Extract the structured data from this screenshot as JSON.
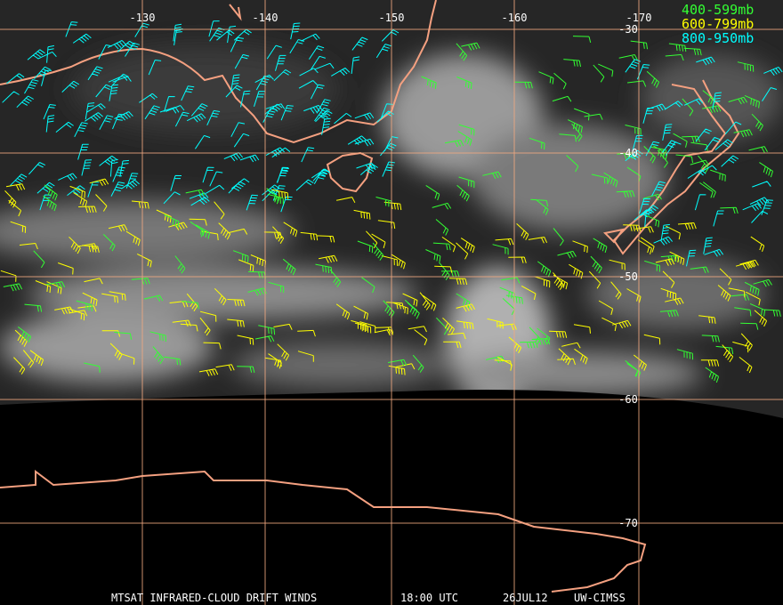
{
  "map": {
    "longitude_labels": [
      "-130",
      "-140",
      "-150",
      "-160",
      "-170"
    ],
    "latitude_labels": [
      "-30",
      "-40",
      "-50",
      "-60",
      "-70"
    ],
    "legend": [
      {
        "label": "400-599mb",
        "color": "#33ff33"
      },
      {
        "label": "600-799mb",
        "color": "#ffff00"
      },
      {
        "label": "800-950mb",
        "color": "#00ffff"
      }
    ],
    "footer": [
      "MTSAT INFRARED-CLOUD DRIFT WINDS",
      "18:00 UTC",
      "26JUL12",
      "UW-CIMSS"
    ]
  }
}
